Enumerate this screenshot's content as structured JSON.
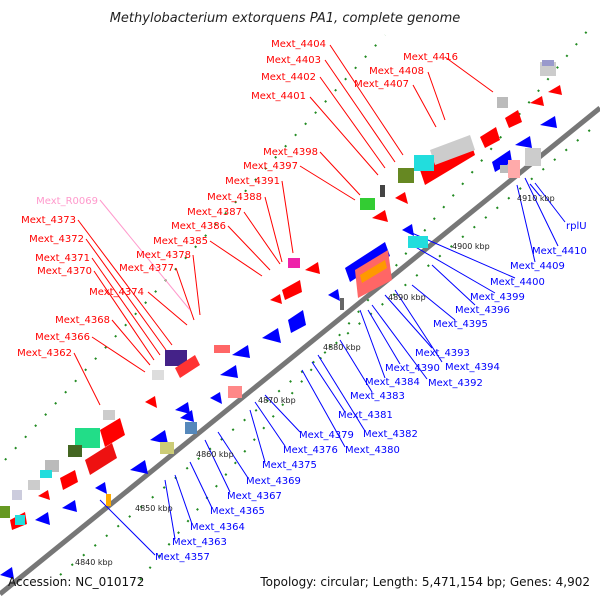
{
  "title": "Methylobacterium extorquens PA1, complete genome",
  "footer": {
    "accession": "Accession: NC_010172",
    "summary": "Topology: circular; Length: 5,471,154 bp; Genes: 4,902"
  },
  "colors": {
    "forward": "#ff0000",
    "reverse": "#0000ff",
    "rna": "#ff99cc",
    "backbone": "#777777",
    "tick": "#228b22"
  },
  "ticks": [
    "4840 kbp",
    "4850 kbp",
    "4860 kbp",
    "4870 kbp",
    "4880 kbp",
    "4890 kbp",
    "4900 kbp",
    "4910 kbp"
  ],
  "forward_labels": [
    "Mext_4404",
    "Mext_4416",
    "Mext_4403",
    "Mext_4408",
    "Mext_4402",
    "Mext_4407",
    "Mext_4401",
    "Mext_4398",
    "Mext_4397",
    "Mext_4391",
    "Mext_4388",
    "Mext_4387",
    "Mext_4386",
    "Mext_4385",
    "Mext_4378",
    "Mext_4377",
    "Mext_4374",
    "Mext_4373",
    "Mext_4372",
    "Mext_4371",
    "Mext_4370",
    "Mext_4368",
    "Mext_4366",
    "Mext_4362"
  ],
  "rna_labels": [
    "Mext_R0069"
  ],
  "reverse_labels": [
    "4910 kbp",
    "rplU",
    "Mext_4410",
    "Mext_4409",
    "Mext_4400",
    "Mext_4399",
    "Mext_4396",
    "Mext_4395",
    "Mext_4394",
    "Mext_4393",
    "Mext_4392",
    "Mext_4390",
    "Mext_4384",
    "Mext_4383",
    "Mext_4382",
    "Mext_4381",
    "Mext_4380",
    "Mext_4379",
    "Mext_4376",
    "Mext_4375",
    "Mext_4369",
    "Mext_4367",
    "Mext_4365",
    "Mext_4364",
    "Mext_4363",
    "Mext_4357"
  ]
}
